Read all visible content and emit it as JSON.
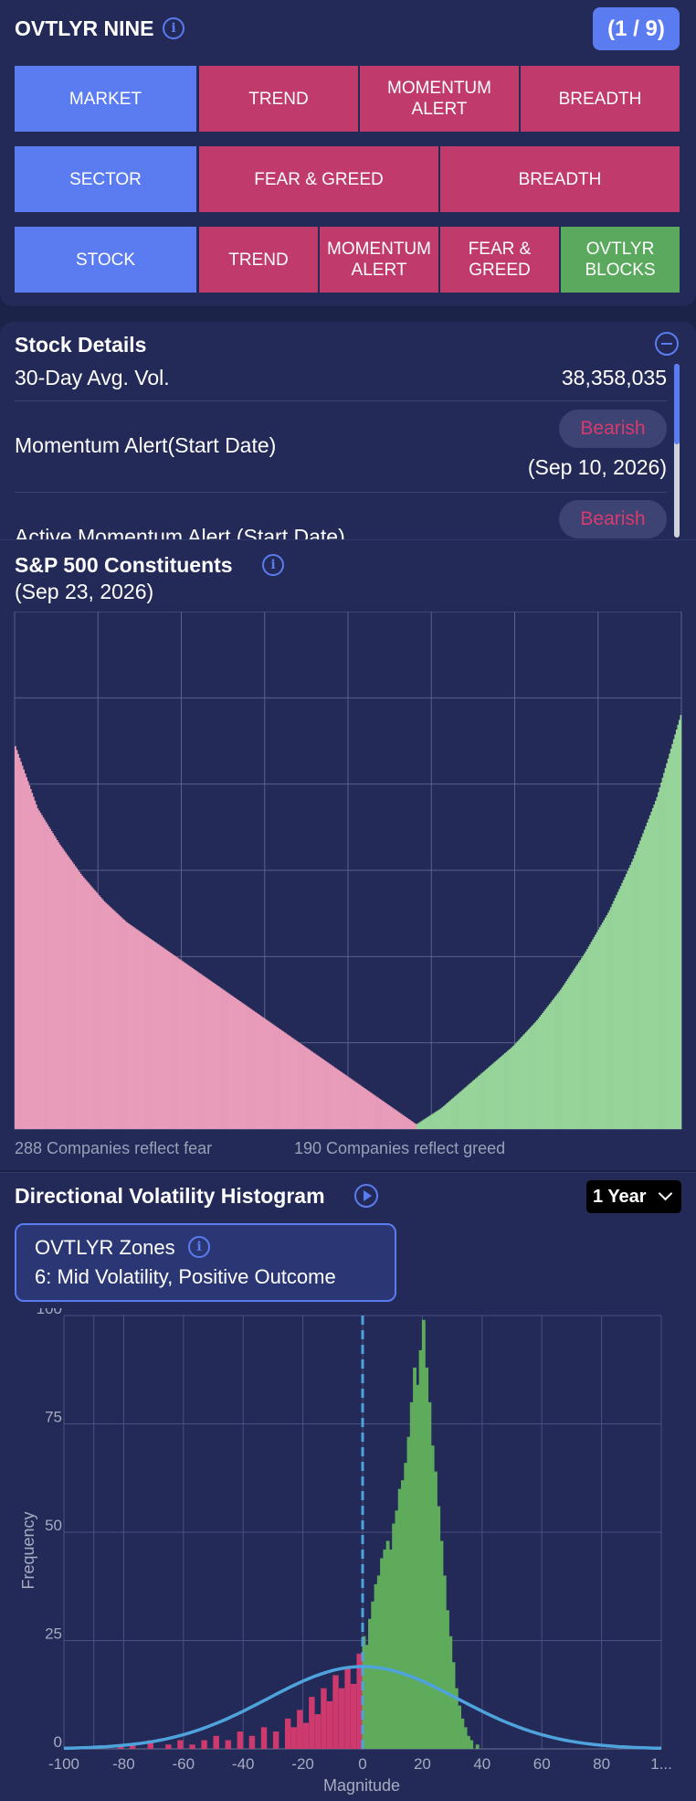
{
  "header": {
    "title": "OVTLYR NINE",
    "page_indicator": "(1 / 9)"
  },
  "nine_grid": {
    "market": {
      "label": "MARKET",
      "items": [
        "TREND",
        "MOMENTUM ALERT",
        "BREADTH"
      ]
    },
    "sector": {
      "label": "SECTOR",
      "items": [
        "FEAR & GREED",
        "BREADTH"
      ]
    },
    "stock": {
      "label": "STOCK",
      "items": [
        "TREND",
        "MOMENTUM ALERT",
        "FEAR & GREED",
        "OVTLYR BLOCKS"
      ]
    }
  },
  "stock_details": {
    "title": "Stock Details",
    "avg_vol_label": "30-Day Avg. Vol.",
    "avg_vol_value": "38,358,035",
    "momentum_label": "Momentum Alert(Start Date)",
    "momentum_status": "Bearish",
    "momentum_date": "(Sep 10, 2026)",
    "active_momentum_label": "Active Momentum Alert (Start Date)",
    "active_momentum_status": "Bearish"
  },
  "constituents": {
    "title": "S&P 500 Constituents",
    "date": "(Sep 23, 2026)",
    "fear_text": "288 Companies reflect fear",
    "greed_text": "190 Companies reflect greed",
    "fear_count": 288,
    "greed_count": 190
  },
  "histogram": {
    "title": "Directional Volatility Histogram",
    "range_selector": "1 Year",
    "zones_title": "OVTLYR Zones",
    "zones_value": "6: Mid Volatility, Positive Outcome"
  },
  "chart_data": [
    {
      "type": "bar",
      "title": "S&P 500 Constituents",
      "series": [
        {
          "name": "fear",
          "count": 288,
          "color": "#e89cba",
          "values_sorted_desc": [
            0.74,
            0.62,
            0.55,
            0.49,
            0.44,
            0.4,
            0.37,
            0.34,
            0.31,
            0.28,
            0.25,
            0.22,
            0.19,
            0.16,
            0.13,
            0.1,
            0.07,
            0.04,
            0.01
          ]
        },
        {
          "name": "greed",
          "count": 190,
          "color": "#96d49a",
          "values_sorted_asc": [
            0.01,
            0.04,
            0.08,
            0.12,
            0.16,
            0.21,
            0.27,
            0.34,
            0.42,
            0.52,
            0.64,
            0.8
          ]
        }
      ]
    },
    {
      "type": "bar",
      "title": "Directional Volatility Histogram",
      "xlabel": "Magnitude",
      "ylabel": "Frequency",
      "xlim": [
        -100,
        100
      ],
      "ylim": [
        0,
        100
      ],
      "x_ticks": [
        "-100",
        "-80",
        "-60",
        "-40",
        "-20",
        "0",
        "20",
        "40",
        "60",
        "80",
        "1..."
      ],
      "y_ticks": [
        "0",
        "25",
        "50",
        "75",
        "100"
      ],
      "negative_color": "#cf3a6e",
      "positive_color": "#5fab5c",
      "curve_color": "#4fa3dc",
      "bins": [
        [
          -82,
          1
        ],
        [
          -78,
          1
        ],
        [
          -72,
          2
        ],
        [
          -66,
          1
        ],
        [
          -62,
          2
        ],
        [
          -58,
          1
        ],
        [
          -54,
          2
        ],
        [
          -50,
          3
        ],
        [
          -46,
          2
        ],
        [
          -42,
          4
        ],
        [
          -38,
          3
        ],
        [
          -34,
          5
        ],
        [
          -30,
          4
        ],
        [
          -26,
          7
        ],
        [
          -24,
          5
        ],
        [
          -22,
          9
        ],
        [
          -20,
          6
        ],
        [
          -18,
          12
        ],
        [
          -16,
          8
        ],
        [
          -14,
          14
        ],
        [
          -12,
          11
        ],
        [
          -10,
          17
        ],
        [
          -8,
          14
        ],
        [
          -6,
          19
        ],
        [
          -4,
          15
        ],
        [
          -2,
          22
        ],
        [
          0,
          26
        ],
        [
          1,
          24
        ],
        [
          2,
          30
        ],
        [
          3,
          34
        ],
        [
          4,
          38
        ],
        [
          5,
          40
        ],
        [
          6,
          44
        ],
        [
          7,
          46
        ],
        [
          8,
          48
        ],
        [
          9,
          46
        ],
        [
          10,
          52
        ],
        [
          11,
          55
        ],
        [
          12,
          60
        ],
        [
          13,
          62
        ],
        [
          14,
          66
        ],
        [
          15,
          72
        ],
        [
          16,
          80
        ],
        [
          17,
          88
        ],
        [
          18,
          84
        ],
        [
          19,
          92
        ],
        [
          20,
          99
        ],
        [
          21,
          88
        ],
        [
          22,
          80
        ],
        [
          23,
          70
        ],
        [
          24,
          64
        ],
        [
          25,
          56
        ],
        [
          26,
          48
        ],
        [
          27,
          40
        ],
        [
          28,
          32
        ],
        [
          29,
          26
        ],
        [
          30,
          20
        ],
        [
          31,
          14
        ],
        [
          32,
          10
        ],
        [
          33,
          7
        ],
        [
          34,
          5
        ],
        [
          35,
          3
        ],
        [
          36,
          2
        ],
        [
          38,
          1
        ]
      ],
      "normal_curve": {
        "mean": 0,
        "stdev": 32,
        "peak": 19
      },
      "vertical_line": 0
    }
  ]
}
